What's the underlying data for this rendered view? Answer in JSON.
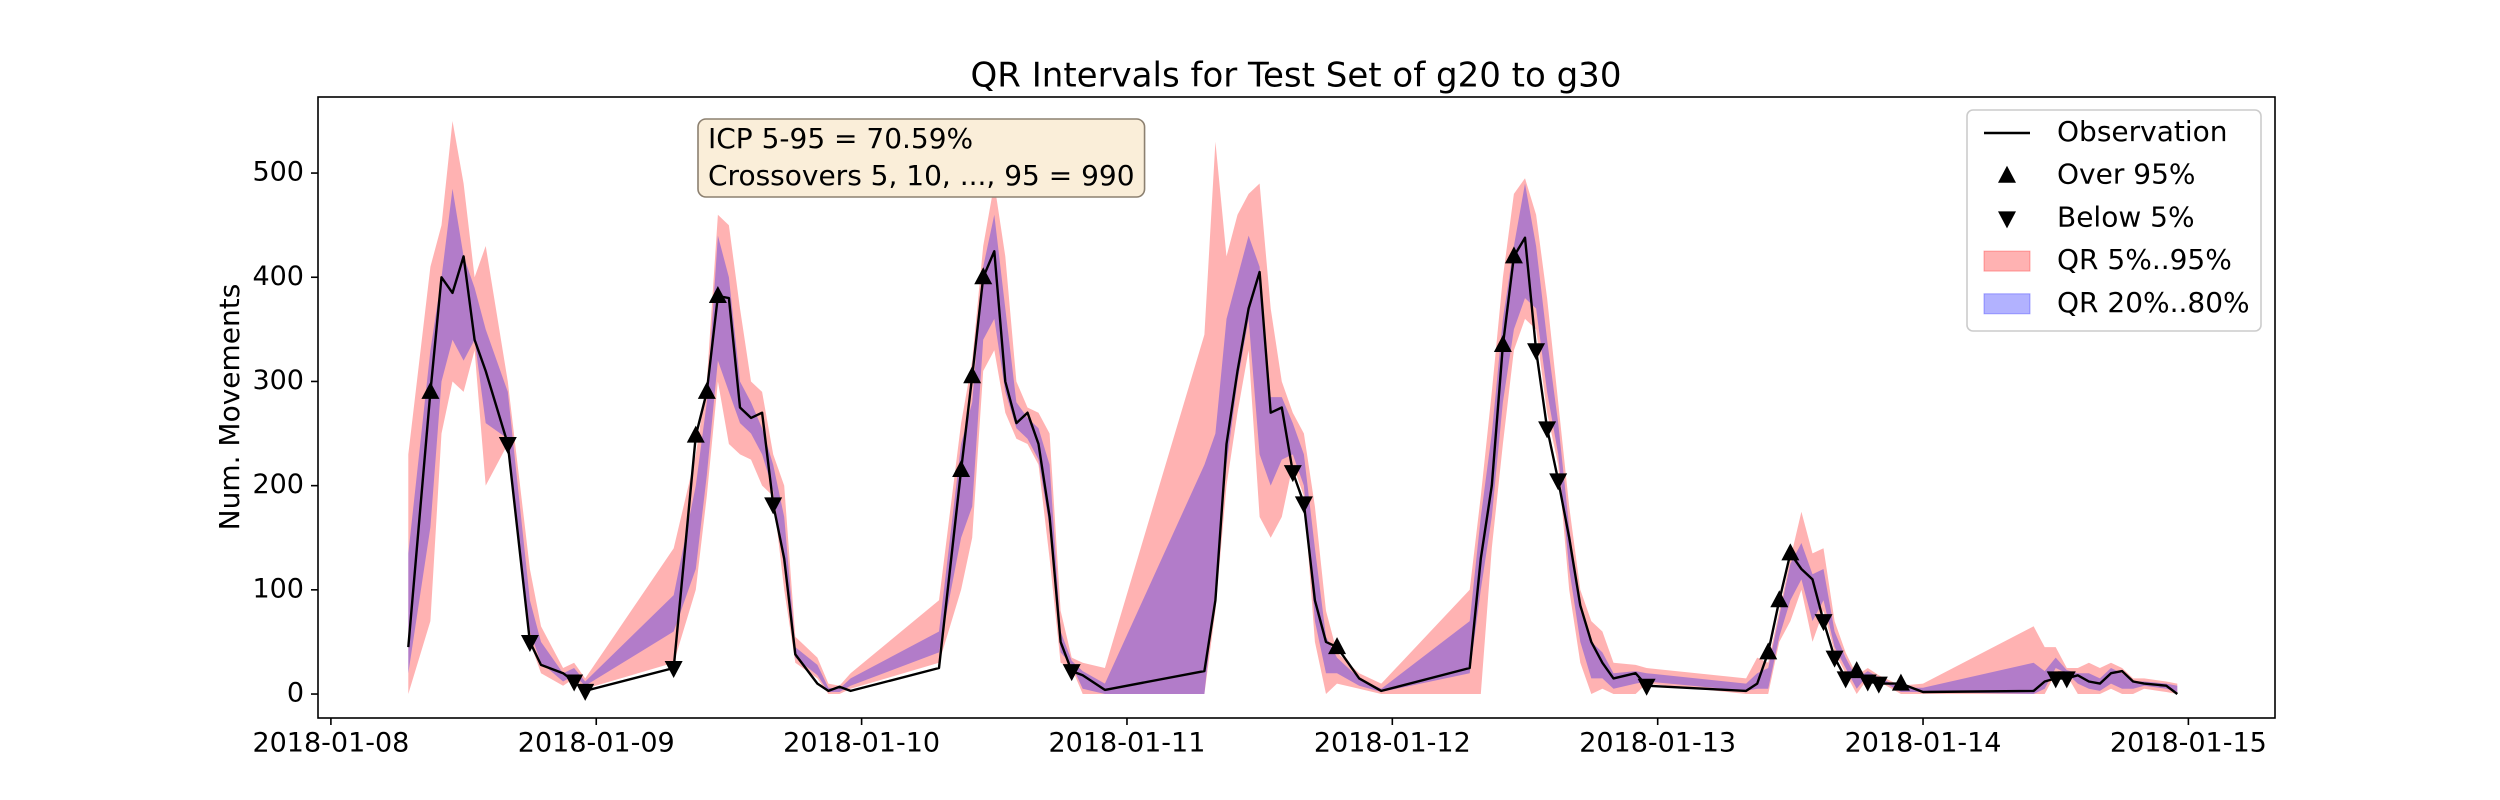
{
  "chart_data": {
    "type": "line",
    "title": "QR Intervals for Test Set of g20 to g30",
    "ylabel": "Num. Movements",
    "annotations": [
      "ICP 5-95 = 70.59%",
      "Crossovers 5, 10, ..., 95 = 990"
    ],
    "legend": "upper right",
    "xlim": [
      "2018-01-07 22:50",
      "2018-01-15 07:50"
    ],
    "xticks": [
      "2018-01-08",
      "2018-01-09",
      "2018-01-10",
      "2018-01-11",
      "2018-01-12",
      "2018-01-13",
      "2018-01-14",
      "2018-01-15"
    ],
    "ylim": [
      -23,
      573
    ],
    "yticks": [
      0,
      100,
      200,
      300,
      400,
      500
    ],
    "x": [
      "2018-01-08 07:00",
      "2018-01-08 09:00",
      "2018-01-08 10:00",
      "2018-01-08 11:00",
      "2018-01-08 12:00",
      "2018-01-08 13:00",
      "2018-01-08 14:00",
      "2018-01-08 16:00",
      "2018-01-08 18:00",
      "2018-01-08 19:00",
      "2018-01-08 21:00",
      "2018-01-08 22:00",
      "2018-01-08 23:00",
      "2018-01-09 07:00",
      "2018-01-09 09:00",
      "2018-01-09 10:00",
      "2018-01-09 11:00",
      "2018-01-09 12:00",
      "2018-01-09 13:00",
      "2018-01-09 14:00",
      "2018-01-09 15:00",
      "2018-01-09 16:00",
      "2018-01-09 17:00",
      "2018-01-09 18:00",
      "2018-01-09 20:00",
      "2018-01-09 21:00",
      "2018-01-09 22:00",
      "2018-01-09 23:00",
      "2018-01-10 07:00",
      "2018-01-10 09:00",
      "2018-01-10 10:00",
      "2018-01-10 11:00",
      "2018-01-10 12:00",
      "2018-01-10 13:00",
      "2018-01-10 14:00",
      "2018-01-10 15:00",
      "2018-01-10 16:00",
      "2018-01-10 17:00",
      "2018-01-10 18:00",
      "2018-01-10 19:00",
      "2018-01-10 20:00",
      "2018-01-10 22:00",
      "2018-01-11 07:00",
      "2018-01-11 08:00",
      "2018-01-11 09:00",
      "2018-01-11 10:00",
      "2018-01-11 11:00",
      "2018-01-11 12:00",
      "2018-01-11 13:00",
      "2018-01-11 14:00",
      "2018-01-11 15:00",
      "2018-01-11 16:00",
      "2018-01-11 17:00",
      "2018-01-11 18:00",
      "2018-01-11 19:00",
      "2018-01-11 21:00",
      "2018-01-11 23:00",
      "2018-01-12 07:00",
      "2018-01-12 08:00",
      "2018-01-12 09:00",
      "2018-01-12 10:00",
      "2018-01-12 11:00",
      "2018-01-12 12:00",
      "2018-01-12 13:00",
      "2018-01-12 14:00",
      "2018-01-12 15:00",
      "2018-01-12 16:00",
      "2018-01-12 17:00",
      "2018-01-12 18:00",
      "2018-01-12 19:00",
      "2018-01-12 20:00",
      "2018-01-12 22:00",
      "2018-01-12 23:00",
      "2018-01-13 08:00",
      "2018-01-13 09:00",
      "2018-01-13 10:00",
      "2018-01-13 11:00",
      "2018-01-13 12:00",
      "2018-01-13 13:00",
      "2018-01-13 14:00",
      "2018-01-13 15:00",
      "2018-01-13 16:00",
      "2018-01-13 17:00",
      "2018-01-13 18:00",
      "2018-01-13 19:00",
      "2018-01-13 20:00",
      "2018-01-13 22:00",
      "2018-01-14 00:00",
      "2018-01-14 10:00",
      "2018-01-14 11:00",
      "2018-01-14 12:00",
      "2018-01-14 13:00",
      "2018-01-14 14:00",
      "2018-01-14 15:00",
      "2018-01-14 16:00",
      "2018-01-14 17:00",
      "2018-01-14 18:00",
      "2018-01-14 19:00",
      "2018-01-14 20:00",
      "2018-01-14 22:00",
      "2018-01-14 23:00"
    ],
    "series": [
      {
        "name": "Observation",
        "type": "line",
        "color": "#000000",
        "values": [
          45,
          290,
          400,
          385,
          420,
          340,
          310,
          240,
          50,
          28,
          20,
          12,
          3,
          25,
          248,
          290,
          382,
          380,
          275,
          265,
          270,
          182,
          130,
          38,
          10,
          3,
          7,
          3,
          25,
          215,
          305,
          400,
          425,
          300,
          260,
          270,
          240,
          170,
          50,
          22,
          18,
          4,
          22,
          90,
          240,
          310,
          370,
          405,
          270,
          275,
          213,
          183,
          90,
          50,
          45,
          15,
          3,
          25,
          130,
          200,
          335,
          420,
          438,
          330,
          255,
          205,
          150,
          85,
          50,
          30,
          15,
          20,
          8,
          3,
          10,
          40,
          90,
          135,
          120,
          110,
          70,
          35,
          15,
          22,
          12,
          10,
          10,
          2,
          3,
          12,
          15,
          15,
          18,
          12,
          10,
          20,
          22,
          12,
          10,
          8,
          0
        ]
      },
      {
        "name": "Over 95%",
        "type": "scatter",
        "marker": "^",
        "color": "#000000",
        "x": [
          "2018-01-08 09:00",
          "2018-01-09 09:00",
          "2018-01-09 10:00",
          "2018-01-09 11:00",
          "2018-01-10 09:00",
          "2018-01-10 10:00",
          "2018-01-10 11:00",
          "2018-01-11 19:00",
          "2018-01-12 10:00",
          "2018-01-12 11:00",
          "2018-01-13 10:00",
          "2018-01-13 11:00",
          "2018-01-13 12:00",
          "2018-01-13 18:00",
          "2018-01-13 22:00"
        ],
        "values": [
          290,
          248,
          290,
          382,
          215,
          305,
          400,
          45,
          335,
          420,
          40,
          90,
          135,
          22,
          10
        ]
      },
      {
        "name": "Below 5%",
        "type": "scatter",
        "marker": "v",
        "color": "#000000",
        "x": [
          "2018-01-08 16:00",
          "2018-01-08 18:00",
          "2018-01-08 22:00",
          "2018-01-08 23:00",
          "2018-01-09 07:00",
          "2018-01-09 16:00",
          "2018-01-10 19:00",
          "2018-01-11 15:00",
          "2018-01-11 16:00",
          "2018-01-12 13:00",
          "2018-01-12 14:00",
          "2018-01-12 15:00",
          "2018-01-12 23:00",
          "2018-01-13 15:00",
          "2018-01-13 16:00",
          "2018-01-13 17:00",
          "2018-01-13 19:00",
          "2018-01-13 20:00",
          "2018-01-14 12:00",
          "2018-01-14 13:00"
        ],
        "values": [
          240,
          50,
          12,
          3,
          25,
          182,
          22,
          213,
          183,
          330,
          255,
          205,
          8,
          70,
          35,
          15,
          12,
          10,
          15,
          15
        ]
      },
      {
        "name": "QR 5%..95%",
        "type": "band",
        "color": "#ff0000",
        "opacity": 0.3,
        "lower": [
          0,
          70,
          250,
          300,
          290,
          330,
          200,
          240,
          50,
          20,
          8,
          15,
          5,
          30,
          100,
          190,
          300,
          240,
          230,
          225,
          200,
          190,
          100,
          30,
          15,
          0,
          0,
          5,
          30,
          100,
          150,
          310,
          330,
          270,
          245,
          240,
          220,
          130,
          30,
          25,
          0,
          0,
          0,
          80,
          200,
          270,
          330,
          170,
          150,
          170,
          220,
          190,
          50,
          0,
          10,
          5,
          0,
          0,
          0,
          140,
          240,
          330,
          360,
          350,
          270,
          220,
          100,
          30,
          0,
          5,
          0,
          0,
          10,
          0,
          0,
          0,
          50,
          70,
          100,
          50,
          80,
          40,
          20,
          0,
          15,
          12,
          0,
          0,
          0,
          0,
          20,
          18,
          0,
          0,
          0,
          5,
          0,
          0,
          5,
          2,
          0
        ],
        "upper": [
          230,
          410,
          450,
          550,
          490,
          400,
          430,
          300,
          120,
          65,
          25,
          30,
          15,
          140,
          230,
          300,
          460,
          450,
          370,
          300,
          290,
          230,
          200,
          55,
          35,
          10,
          8,
          20,
          90,
          260,
          320,
          430,
          490,
          420,
          300,
          275,
          270,
          250,
          80,
          35,
          30,
          25,
          345,
          530,
          420,
          460,
          480,
          490,
          370,
          300,
          270,
          250,
          180,
          80,
          40,
          20,
          10,
          100,
          190,
          290,
          400,
          480,
          495,
          460,
          380,
          280,
          180,
          100,
          70,
          60,
          30,
          28,
          25,
          15,
          35,
          30,
          80,
          130,
          175,
          135,
          140,
          70,
          40,
          18,
          25,
          18,
          8,
          10,
          65,
          45,
          45,
          25,
          25,
          30,
          25,
          30,
          25,
          15,
          15,
          12,
          10
        ]
      },
      {
        "name": "QR 20%..80%",
        "type": "band",
        "color": "#0000ff",
        "opacity": 0.3,
        "lower": [
          20,
          160,
          300,
          340,
          320,
          340,
          260,
          245,
          60,
          30,
          12,
          18,
          8,
          60,
          120,
          210,
          320,
          290,
          260,
          250,
          230,
          195,
          120,
          35,
          18,
          2,
          2,
          8,
          40,
          150,
          180,
          340,
          360,
          290,
          255,
          245,
          225,
          160,
          40,
          28,
          5,
          0,
          0,
          100,
          220,
          300,
          360,
          230,
          200,
          225,
          230,
          200,
          70,
          20,
          20,
          8,
          2,
          20,
          100,
          170,
          280,
          350,
          380,
          370,
          290,
          230,
          120,
          50,
          15,
          15,
          5,
          10,
          12,
          3,
          5,
          5,
          55,
          90,
          110,
          70,
          90,
          45,
          25,
          5,
          18,
          14,
          2,
          2,
          0,
          5,
          25,
          20,
          10,
          5,
          3,
          10,
          5,
          5,
          8,
          5,
          2
        ],
        "upper": [
          135,
          330,
          400,
          485,
          420,
          390,
          350,
          290,
          90,
          50,
          20,
          25,
          12,
          95,
          200,
          280,
          440,
          400,
          300,
          280,
          255,
          220,
          170,
          45,
          28,
          6,
          5,
          15,
          60,
          240,
          280,
          410,
          460,
          370,
          280,
          265,
          255,
          220,
          60,
          32,
          22,
          10,
          220,
          250,
          360,
          400,
          440,
          410,
          285,
          285,
          260,
          230,
          140,
          55,
          35,
          15,
          5,
          70,
          170,
          250,
          360,
          430,
          490,
          430,
          340,
          260,
          160,
          80,
          50,
          40,
          20,
          22,
          20,
          10,
          20,
          25,
          75,
          125,
          145,
          115,
          120,
          60,
          35,
          15,
          22,
          16,
          6,
          6,
          30,
          22,
          35,
          23,
          20,
          20,
          15,
          25,
          20,
          12,
          12,
          10,
          8
        ]
      }
    ]
  }
}
